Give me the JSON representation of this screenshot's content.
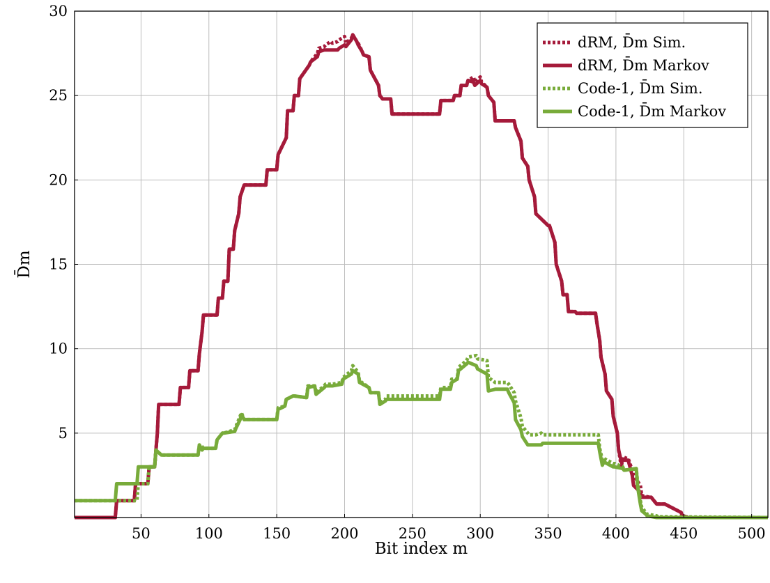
{
  "chart_data": {
    "type": "line",
    "title": "",
    "xlabel": "Bit index m",
    "ylabel": "D̄m",
    "xlim": [
      1,
      512
    ],
    "ylim": [
      0,
      30
    ],
    "xticks": [
      50,
      100,
      150,
      200,
      250,
      300,
      350,
      400,
      450,
      500
    ],
    "yticks": [
      5,
      10,
      15,
      20,
      25,
      30
    ],
    "grid": true,
    "legend_position": "top-right",
    "series": [
      {
        "name": "dRM, D̄m Sim.",
        "color": "#a51a3a",
        "style": "dotted",
        "x": [
          1,
          31,
          32,
          45,
          46,
          55,
          56,
          60,
          61,
          62,
          63,
          78,
          79,
          85,
          86,
          92,
          93,
          95,
          96,
          106,
          107,
          110,
          111,
          114,
          115,
          118,
          119,
          122,
          123,
          126,
          127,
          142,
          143,
          150,
          151,
          157,
          158,
          162,
          163,
          166,
          167,
          174,
          175,
          180,
          181,
          185,
          186,
          190,
          191,
          195,
          196,
          200,
          201,
          205,
          206,
          209,
          210,
          213,
          214,
          218,
          219,
          225,
          226,
          228,
          229,
          234,
          235,
          270,
          271,
          280,
          281,
          285,
          286,
          290,
          291,
          295,
          296,
          300,
          301,
          305,
          306,
          310,
          311,
          325,
          326,
          330,
          331,
          335,
          336,
          340,
          341,
          350,
          351,
          355,
          356,
          360,
          361,
          364,
          365,
          370,
          371,
          375,
          376,
          385,
          386,
          388,
          389,
          392,
          393,
          397,
          398,
          401,
          402,
          404,
          405,
          408,
          409,
          412,
          413,
          418,
          419,
          425,
          426,
          430,
          431,
          435,
          436,
          448,
          449,
          452,
          453,
          512
        ],
        "y": [
          0,
          0,
          1,
          1,
          2,
          2,
          3,
          3,
          4,
          5,
          6.7,
          6.7,
          7.7,
          7.7,
          8.7,
          8.7,
          9.7,
          11,
          12,
          12,
          13,
          13,
          14,
          14,
          15.9,
          15.9,
          17,
          18,
          19,
          19.7,
          19.7,
          19.7,
          20.6,
          20.6,
          21.5,
          22.5,
          24.1,
          24.1,
          25,
          25,
          26,
          26.8,
          27,
          27.5,
          27.8,
          27.9,
          28,
          28.2,
          28.1,
          28.2,
          28.3,
          28.5,
          28.1,
          28.4,
          28.6,
          28.2,
          28.1,
          27.6,
          27.4,
          27.3,
          26.5,
          25.6,
          25,
          24.8,
          24.8,
          24.8,
          23.9,
          23.9,
          24.7,
          24.7,
          25,
          25,
          25.6,
          25.6,
          25.9,
          26.1,
          25.8,
          26.1,
          25.8,
          25.5,
          25,
          24.6,
          23.5,
          23.5,
          23.1,
          22.3,
          21.3,
          20.8,
          20,
          19,
          18,
          17.3,
          17.3,
          16.3,
          15,
          14,
          13.2,
          13.2,
          12.2,
          12.2,
          12.1,
          12.1,
          12.1,
          12.1,
          11.5,
          10.5,
          9.5,
          8.5,
          7.5,
          7,
          6,
          5,
          4,
          3,
          3.6,
          3.5,
          3.5,
          2.8,
          2.5,
          1.9,
          1.3,
          1.2,
          1.2,
          0.8,
          0.8,
          0.8,
          0.8,
          0.3,
          0.1,
          0.05,
          0,
          0
        ]
      },
      {
        "name": "dRM, D̄m Markov",
        "color": "#a51a3a",
        "style": "solid",
        "x": [
          1,
          31,
          32,
          45,
          46,
          55,
          56,
          60,
          61,
          62,
          63,
          78,
          79,
          85,
          86,
          92,
          93,
          95,
          96,
          106,
          107,
          110,
          111,
          114,
          115,
          118,
          119,
          122,
          123,
          126,
          127,
          142,
          143,
          150,
          151,
          157,
          158,
          162,
          163,
          166,
          167,
          174,
          175,
          180,
          181,
          185,
          186,
          190,
          191,
          195,
          196,
          200,
          201,
          205,
          206,
          209,
          210,
          213,
          214,
          218,
          219,
          225,
          226,
          228,
          229,
          234,
          235,
          270,
          271,
          280,
          281,
          285,
          286,
          290,
          291,
          295,
          296,
          300,
          301,
          305,
          306,
          310,
          311,
          325,
          326,
          330,
          331,
          335,
          336,
          340,
          341,
          350,
          351,
          355,
          356,
          360,
          361,
          364,
          365,
          370,
          371,
          375,
          376,
          385,
          386,
          388,
          389,
          392,
          393,
          397,
          398,
          401,
          402,
          404,
          405,
          408,
          409,
          412,
          413,
          418,
          419,
          425,
          426,
          430,
          431,
          435,
          436,
          448,
          449,
          452,
          453,
          512
        ],
        "y": [
          0,
          0,
          1,
          1,
          2,
          2,
          3,
          3,
          4,
          5,
          6.7,
          6.7,
          7.7,
          7.7,
          8.7,
          8.7,
          9.7,
          11,
          12,
          12,
          13,
          13,
          14,
          14,
          15.9,
          15.9,
          17,
          18,
          19,
          19.7,
          19.7,
          19.7,
          20.6,
          20.6,
          21.5,
          22.5,
          24.1,
          24.1,
          25,
          25,
          26,
          26.8,
          27,
          27.3,
          27.6,
          27.7,
          27.7,
          27.7,
          27.7,
          27.7,
          27.8,
          28,
          27.9,
          28.3,
          28.6,
          28.2,
          28,
          27.6,
          27.4,
          27.3,
          26.5,
          25.6,
          25,
          24.8,
          24.8,
          24.8,
          23.9,
          23.9,
          24.7,
          24.7,
          25,
          25,
          25.6,
          25.6,
          25.9,
          25.8,
          25.6,
          25.9,
          25.7,
          25.5,
          25,
          24.6,
          23.5,
          23.5,
          23.1,
          22.3,
          21.3,
          20.8,
          20,
          19,
          18,
          17.3,
          17.3,
          16.3,
          15,
          14,
          13.2,
          13.2,
          12.2,
          12.2,
          12.1,
          12.1,
          12.1,
          12.1,
          11.5,
          10.5,
          9.5,
          8.5,
          7.5,
          7,
          6,
          5,
          4,
          3.3,
          3.4,
          3.4,
          3.4,
          2.5,
          1.9,
          1.5,
          1.2,
          1.2,
          1.2,
          0.8,
          0.8,
          0.8,
          0.8,
          0.3,
          0.1,
          0.05,
          0,
          0
        ]
      },
      {
        "name": "Code-1, D̄m Sim.",
        "color": "#78ab3a",
        "style": "dotted",
        "x": [
          1,
          31,
          32,
          47,
          48,
          55,
          56,
          60,
          61,
          65,
          66,
          92,
          93,
          95,
          96,
          105,
          106,
          110,
          111,
          119,
          120,
          123,
          124,
          126,
          127,
          150,
          151,
          156,
          157,
          162,
          163,
          172,
          173,
          178,
          179,
          185,
          186,
          190,
          191,
          198,
          199,
          205,
          206,
          210,
          211,
          218,
          219,
          225,
          226,
          230,
          231,
          235,
          236,
          270,
          271,
          278,
          279,
          283,
          284,
          290,
          291,
          297,
          298,
          305,
          306,
          311,
          312,
          320,
          321,
          325,
          326,
          330,
          331,
          335,
          336,
          340,
          341,
          345,
          346,
          352,
          353,
          372,
          373,
          387,
          388,
          390,
          391,
          398,
          399,
          405,
          406,
          415,
          416,
          418,
          419,
          422,
          423,
          430,
          431,
          512
        ],
        "y": [
          1,
          1,
          1,
          1,
          2,
          2,
          3,
          3,
          4,
          3.7,
          3.7,
          3.7,
          4.3,
          4.2,
          4.1,
          4.1,
          4.6,
          5,
          5,
          5.2,
          5.4,
          6,
          6.2,
          5.8,
          5.8,
          5.8,
          6.5,
          6.6,
          7,
          7.2,
          7.2,
          7.1,
          7.8,
          7.8,
          7.4,
          7.8,
          7.9,
          7.9,
          7.9,
          8,
          8.3,
          8.7,
          9,
          8.6,
          8.1,
          7.7,
          7.4,
          7.4,
          6.8,
          7,
          7.2,
          7.2,
          7.2,
          7.2,
          7.7,
          7.7,
          8.2,
          8.2,
          8.9,
          9.3,
          9.5,
          9.6,
          9.4,
          9.3,
          8.3,
          8,
          8,
          8,
          7.9,
          7.4,
          6.9,
          5.9,
          5.4,
          5,
          4.9,
          4.9,
          4.9,
          5,
          4.9,
          4.9,
          4.9,
          4.9,
          4.9,
          4.9,
          4.1,
          3.4,
          3.5,
          3.2,
          3.2,
          3,
          2.8,
          2.9,
          2,
          1,
          0.6,
          0.3,
          0.2,
          0.1,
          0.05,
          0
        ]
      },
      {
        "name": "Code-1, D̄m Markov",
        "color": "#78ab3a",
        "style": "solid",
        "x": [
          1,
          31,
          32,
          47,
          48,
          55,
          56,
          60,
          61,
          65,
          66,
          92,
          93,
          95,
          96,
          105,
          106,
          110,
          111,
          119,
          120,
          123,
          124,
          126,
          127,
          150,
          151,
          156,
          157,
          162,
          163,
          172,
          173,
          178,
          179,
          185,
          186,
          190,
          191,
          198,
          199,
          205,
          206,
          210,
          211,
          218,
          219,
          225,
          226,
          230,
          231,
          235,
          236,
          270,
          271,
          278,
          279,
          283,
          284,
          290,
          291,
          297,
          298,
          305,
          306,
          311,
          312,
          320,
          321,
          325,
          326,
          330,
          331,
          335,
          336,
          340,
          341,
          345,
          346,
          352,
          353,
          372,
          373,
          387,
          388,
          390,
          391,
          398,
          399,
          405,
          406,
          415,
          416,
          418,
          419,
          422,
          423,
          430,
          431,
          512
        ],
        "y": [
          1,
          1,
          2,
          2,
          3,
          3,
          3,
          3,
          4,
          3.7,
          3.7,
          3.7,
          4.3,
          4,
          4.1,
          4.1,
          4.6,
          5,
          5,
          5.1,
          5.3,
          5.8,
          6.1,
          5.8,
          5.8,
          5.8,
          6.4,
          6.6,
          7,
          7.2,
          7.2,
          7.1,
          7.7,
          7.8,
          7.3,
          7.7,
          7.8,
          7.8,
          7.8,
          7.9,
          8.2,
          8.5,
          8.7,
          8.5,
          8,
          7.7,
          7.4,
          7.4,
          6.7,
          6.9,
          7,
          7,
          7,
          7,
          7.6,
          7.6,
          8,
          8.2,
          8.7,
          9.1,
          9.2,
          9,
          8.8,
          8.5,
          7.5,
          7.6,
          7.6,
          7.6,
          7.4,
          6.8,
          5.8,
          5.2,
          4.8,
          4.3,
          4.3,
          4.3,
          4.3,
          4.3,
          4.4,
          4.4,
          4.4,
          4.4,
          4.4,
          4.4,
          3.9,
          3.1,
          3.3,
          3,
          3,
          2.9,
          2.8,
          2.9,
          1.8,
          0.8,
          0.4,
          0.2,
          0.1,
          0,
          0,
          0
        ]
      }
    ]
  }
}
